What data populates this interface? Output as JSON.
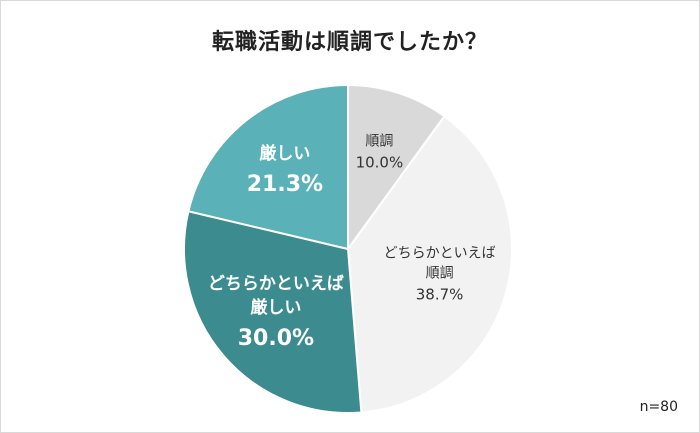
{
  "chart_data": {
    "type": "pie",
    "title": "転職活動は順調でしたか？",
    "slices": [
      {
        "label": "順調",
        "value": 10.0,
        "value_text": "10.0%",
        "color": "#d9d9d9",
        "label_color": "#333333",
        "bold": false,
        "label_lines": [
          "順調"
        ]
      },
      {
        "label": "どちらかといえば順調",
        "value": 38.7,
        "value_text": "38.7%",
        "color": "#f2f2f2",
        "label_color": "#333333",
        "bold": false,
        "label_lines": [
          "どちらかといえば",
          "順調"
        ]
      },
      {
        "label": "どちらかといえば厳しい",
        "value": 30.0,
        "value_text": "30.0%",
        "color": "#3c8b8f",
        "label_color": "#ffffff",
        "bold": true,
        "label_lines": [
          "どちらかといえば",
          "厳しい"
        ]
      },
      {
        "label": "厳しい",
        "value": 21.3,
        "value_text": "21.3%",
        "color": "#5ab1b8",
        "label_color": "#ffffff",
        "bold": true,
        "label_lines": [
          "厳しい"
        ]
      }
    ],
    "start_angle": "12-o'clock",
    "direction": "clockwise",
    "legend": "none"
  },
  "note": "n=80"
}
